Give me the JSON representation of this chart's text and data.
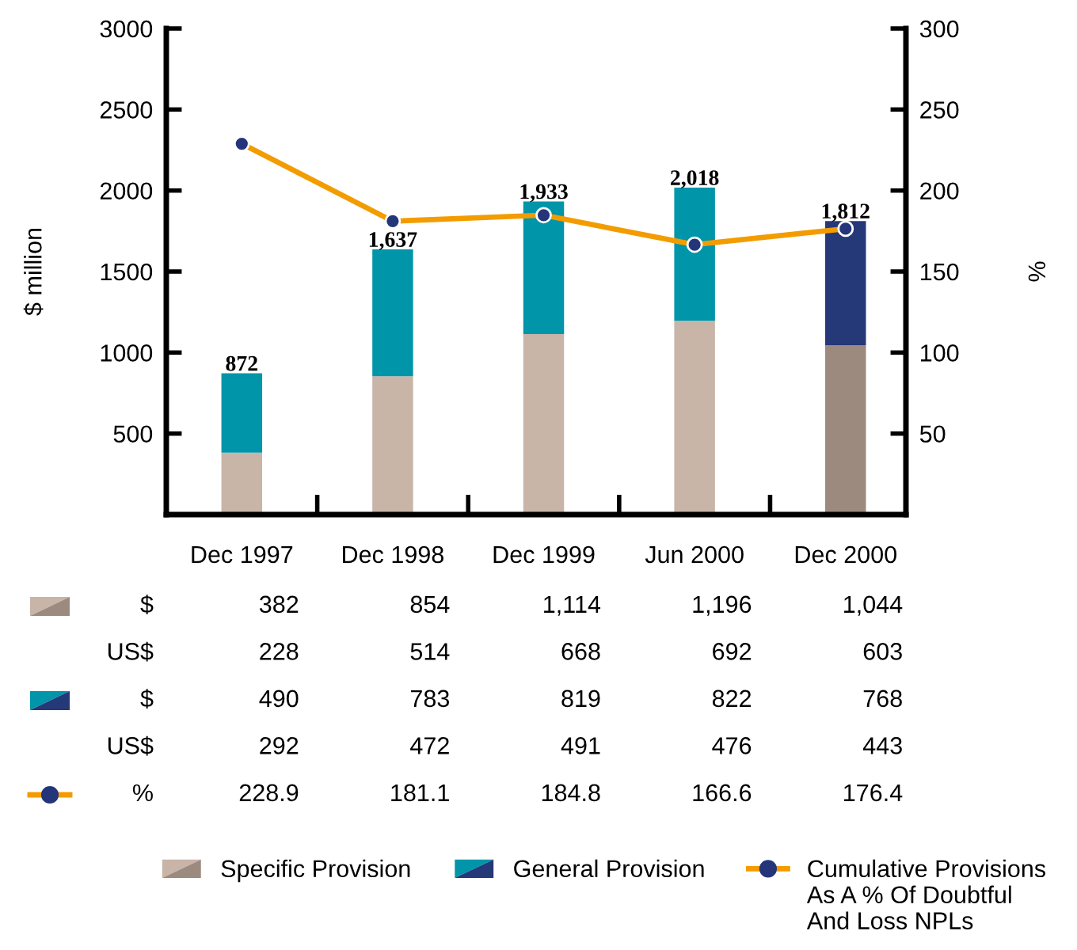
{
  "chart_data": {
    "type": "bar",
    "stacked": true,
    "categories": [
      "Dec 1997",
      "Dec 1998",
      "Dec 1999",
      "Jun 2000",
      "Dec 2000"
    ],
    "series": [
      {
        "name": "Specific Provision",
        "colors": [
          "#c8b5a8",
          "#c8b5a8",
          "#c8b5a8",
          "#c8b5a8",
          "#9d8a7f"
        ],
        "values": [
          382,
          854,
          1114,
          1196,
          1044
        ],
        "value_labels": [
          "382",
          "854",
          "1,114",
          "1,196",
          "1,044"
        ]
      },
      {
        "name": "General Provision",
        "colors": [
          "#0095a8",
          "#0095a8",
          "#0095a8",
          "#0095a8",
          "#253878"
        ],
        "values": [
          490,
          783,
          819,
          822,
          768
        ],
        "value_labels": [
          "490",
          "783",
          "819",
          "822",
          "768"
        ]
      },
      {
        "name": "Cumulative Provisions\nAs A % Of Doubtful\nAnd Loss NPLs",
        "type": "line",
        "axis": "y2",
        "color": "#f29c00",
        "colors": [
          "#25357a",
          "#25357a",
          "#25357a",
          "#25357a",
          "#25357a"
        ],
        "values": [
          228.9,
          181.1,
          184.8,
          166.6,
          176.4
        ],
        "value_labels": [
          "228.9",
          "181.1",
          "184.8",
          "166.6",
          "176.4"
        ]
      }
    ],
    "totals": [
      "872",
      "1,637",
      "1,933",
      "2,018",
      "1,812"
    ],
    "ylabel": "$ million",
    "y2label": "%",
    "ylim": [
      0,
      3000
    ],
    "yticks": [
      500,
      1000,
      1500,
      2000,
      2500,
      3000
    ],
    "y2lim": [
      0,
      300
    ],
    "y2ticks": [
      50,
      100,
      150,
      200,
      250,
      300
    ],
    "annotations": [
      "$",
      "US$",
      "228",
      "514",
      "668",
      "692",
      "603",
      "$",
      "US$",
      "292",
      "472",
      "491",
      "476",
      "443",
      "%"
    ],
    "marker": "circle",
    "line_style": "solid",
    "legend": "bottom"
  }
}
